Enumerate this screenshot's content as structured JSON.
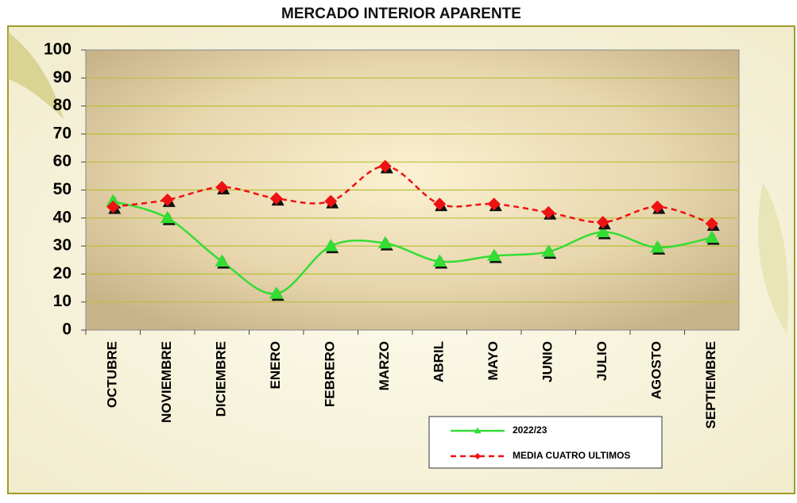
{
  "chart_data": {
    "type": "line",
    "title": "MERCADO INTERIOR APARENTE",
    "categories": [
      "OCTUBRE",
      "NOVIEMBRE",
      "DICIEMBRE",
      "ENERO",
      "FEBRERO",
      "MARZO",
      "ABRIL",
      "MAYO",
      "JUNIO",
      "JULIO",
      "AGOSTO",
      "SEPTIEMBRE"
    ],
    "series": [
      {
        "name": "2022/23",
        "color": "#33dd33",
        "marker": "triangle",
        "style": "solid",
        "values": [
          46,
          40,
          24.5,
          13,
          30,
          31,
          24.5,
          26.5,
          28,
          35,
          29.5,
          33
        ]
      },
      {
        "name": "MEDIA CUATRO ULTIMOS",
        "color": "#ee1111",
        "marker": "diamond",
        "style": "dashed",
        "values": [
          44,
          46.5,
          51,
          47,
          46,
          58.5,
          45,
          45,
          42,
          38.5,
          44,
          38
        ]
      }
    ],
    "ylim": [
      0,
      100
    ],
    "yticks": [
      0,
      10,
      20,
      30,
      40,
      50,
      60,
      70,
      80,
      90,
      100
    ],
    "grid": true,
    "smooth": true
  }
}
